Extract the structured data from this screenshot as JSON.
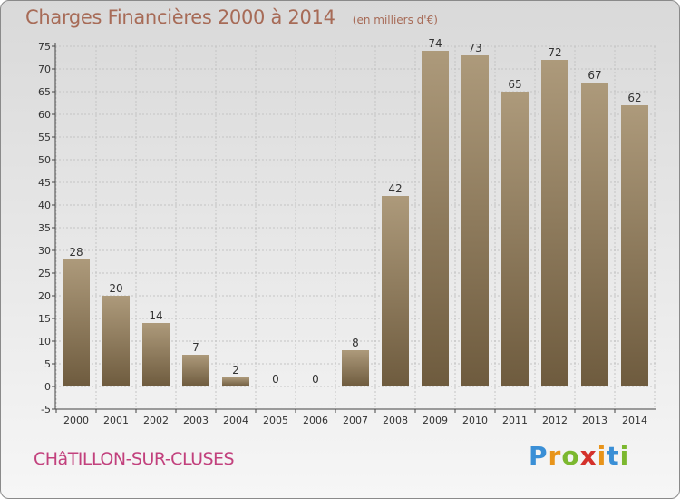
{
  "header": {
    "title": "Charges Financières 2000 à 2014",
    "unit": "(en milliers d'€)"
  },
  "footer": {
    "commune": "CHâTILLON-SUR-CLUSES"
  },
  "logo": {
    "letters": [
      "P",
      "r",
      "o",
      "x",
      "i",
      "t",
      "i"
    ],
    "colors": [
      "#3a8fd6",
      "#e8941a",
      "#7cb82f",
      "#d4312b",
      "#e8941a",
      "#3a8fd6",
      "#7cb82f"
    ]
  },
  "colors": {
    "bar_top": "#ad9a7b",
    "bar_bottom": "#6e5b3e",
    "title": "#a76b57",
    "commune": "#c2417d"
  },
  "chart_data": {
    "type": "bar",
    "categories": [
      "2000",
      "2001",
      "2002",
      "2003",
      "2004",
      "2005",
      "2006",
      "2007",
      "2008",
      "2009",
      "2010",
      "2011",
      "2012",
      "2013",
      "2014"
    ],
    "values": [
      28,
      20,
      14,
      7,
      2,
      0,
      0,
      8,
      42,
      74,
      73,
      65,
      72,
      67,
      62
    ],
    "title": "Charges Financières 2000 à 2014",
    "subtitle": "(en milliers d'€)",
    "ylim": [
      -5,
      75
    ],
    "yticks": [
      -5,
      0,
      5,
      10,
      15,
      20,
      25,
      30,
      35,
      40,
      45,
      50,
      55,
      60,
      65,
      70,
      75
    ],
    "grid": true,
    "data_labels": true
  }
}
